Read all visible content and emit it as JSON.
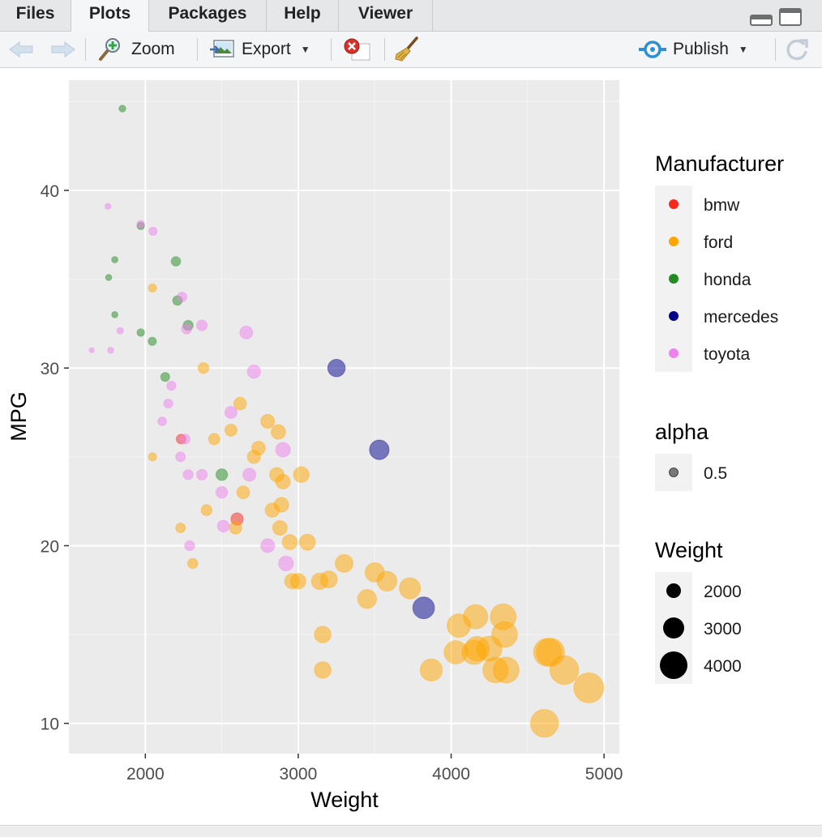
{
  "tabs": [
    "Files",
    "Plots",
    "Packages",
    "Help",
    "Viewer"
  ],
  "active_tab": "Plots",
  "toolbar": {
    "zoom_label": "Zoom",
    "export_label": "Export",
    "publish_label": "Publish"
  },
  "icons": [
    "back-arrow-icon",
    "forward-arrow-icon",
    "zoom-icon",
    "export-icon",
    "remove-plot-icon",
    "broom-icon",
    "publish-icon",
    "refresh-icon",
    "minimize-icon",
    "maximize-icon"
  ],
  "colors": {
    "bmw": "#f8281c",
    "ford": "#ffa500",
    "honda": "#228b22",
    "mercedes": "#00008b",
    "toyota": "#ee82ee",
    "panel": "#ebebeb"
  },
  "chart_data": {
    "type": "scatter",
    "xlabel": "Weight",
    "ylabel": "MPG",
    "xlim": [
      1500,
      5100
    ],
    "ylim": [
      8.3,
      46.2
    ],
    "xticks": [
      2000,
      3000,
      4000,
      5000
    ],
    "yticks": [
      10,
      20,
      30,
      40
    ],
    "grid": true,
    "legend_position": "right",
    "legend": {
      "color_title": "Manufacturer",
      "alpha_title": "alpha",
      "alpha_value": "0.5",
      "size_title": "Weight",
      "size_values": [
        "2000",
        "3000",
        "4000"
      ]
    },
    "series": [
      {
        "name": "bmw",
        "points": [
          [
            2234,
            26
          ],
          [
            2600,
            21.5
          ]
        ]
      },
      {
        "name": "ford",
        "points": [
          [
            2046,
            25
          ],
          [
            2046,
            34.5
          ],
          [
            2230,
            21
          ],
          [
            2310,
            19
          ],
          [
            2380,
            30
          ],
          [
            2400,
            22
          ],
          [
            2450,
            26
          ],
          [
            2560,
            26.5
          ],
          [
            2590,
            21
          ],
          [
            2620,
            28
          ],
          [
            2640,
            23
          ],
          [
            2710,
            25
          ],
          [
            2740,
            25.5
          ],
          [
            2800,
            27
          ],
          [
            2830,
            22
          ],
          [
            2860,
            24
          ],
          [
            2870,
            26.4
          ],
          [
            2880,
            21
          ],
          [
            2890,
            22.3
          ],
          [
            2900,
            23.6
          ],
          [
            2945,
            20.2
          ],
          [
            2960,
            18
          ],
          [
            3020,
            24
          ],
          [
            3000,
            18
          ],
          [
            3060,
            20.2
          ],
          [
            3140,
            18
          ],
          [
            3160,
            15
          ],
          [
            3160,
            13
          ],
          [
            3200,
            18.1
          ],
          [
            3300,
            19
          ],
          [
            3450,
            17
          ],
          [
            3500,
            18.5
          ],
          [
            3580,
            18
          ],
          [
            3730,
            17.6
          ],
          [
            3870,
            13
          ],
          [
            4030,
            14
          ],
          [
            4050,
            15.5
          ],
          [
            4150,
            14
          ],
          [
            4160,
            16
          ],
          [
            4170,
            14.2
          ],
          [
            4250,
            14.2
          ],
          [
            4290,
            13
          ],
          [
            4340,
            16
          ],
          [
            4350,
            15
          ],
          [
            4360,
            13
          ],
          [
            4630,
            14
          ],
          [
            4650,
            14
          ],
          [
            4740,
            13
          ],
          [
            4900,
            12
          ],
          [
            4610,
            10
          ]
        ]
      },
      {
        "name": "honda",
        "points": [
          [
            1850,
            44.6
          ],
          [
            1760,
            35.1
          ],
          [
            1800,
            36.1
          ],
          [
            1800,
            33
          ],
          [
            1970,
            38
          ],
          [
            1970,
            32
          ],
          [
            2045,
            31.5
          ],
          [
            2130,
            29.5
          ],
          [
            2200,
            36
          ],
          [
            2210,
            33.8
          ],
          [
            2280,
            32.4
          ],
          [
            2500,
            24
          ]
        ]
      },
      {
        "name": "mercedes",
        "points": [
          [
            3250,
            30
          ],
          [
            3530,
            25.4
          ],
          [
            3820,
            16.5
          ]
        ]
      },
      {
        "name": "toyota",
        "points": [
          [
            1649,
            31
          ],
          [
            1755,
            39.1
          ],
          [
            1773,
            31
          ],
          [
            1835,
            32.1
          ],
          [
            1970,
            38.1
          ],
          [
            2050,
            37.7
          ],
          [
            2110,
            27
          ],
          [
            2150,
            28
          ],
          [
            2170,
            29
          ],
          [
            2230,
            25
          ],
          [
            2240,
            34
          ],
          [
            2260,
            26
          ],
          [
            2270,
            32.2
          ],
          [
            2280,
            24
          ],
          [
            2290,
            20
          ],
          [
            2370,
            32.4
          ],
          [
            2370,
            24
          ],
          [
            2500,
            23
          ],
          [
            2510,
            21.1
          ],
          [
            2560,
            27.5
          ],
          [
            2680,
            24
          ],
          [
            2660,
            32
          ],
          [
            2710,
            29.8
          ],
          [
            2800,
            20
          ],
          [
            2900,
            25.4
          ],
          [
            2920,
            19
          ]
        ]
      }
    ]
  }
}
